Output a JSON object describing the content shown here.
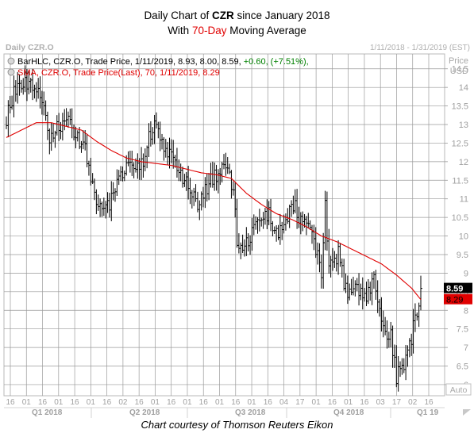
{
  "header": {
    "title_prefix": "Daily Chart of ",
    "ticker": "CZR",
    "title_suffix": " since January 2018",
    "subtitle_prefix": "With ",
    "ma_label": "70-Day",
    "subtitle_suffix": " Moving Average"
  },
  "panel": {
    "name": "Daily CZR.O",
    "date_range": "1/11/2018 - 1/31/2019 (EST)",
    "legend_bar": "BarHLC, CZR.O, Trade Price, 1/11/2019, 8.93, 8.00, 8.59, ",
    "legend_bar_change": "+0.60, (+7.51%),",
    "legend_sma": "SMA, CZR.O, Trade Price(Last), 70, 1/11/2019, 8.29",
    "axis_title_1": "Price",
    "axis_title_2": "USD",
    "last_price_label": "8.59",
    "sma_label": "8.29",
    "auto_label": "Auto"
  },
  "caption": "Chart courtesy of Thomson Reuters Eikon",
  "colors": {
    "bar": "#000000",
    "sma": "#e00000",
    "grid": "#9a9a9a",
    "last_bg": "#000000",
    "sma_bg": "#e00000"
  },
  "chart_data": {
    "type": "bar",
    "ylim": [
      5.7,
      14.9
    ],
    "yticks": [
      6,
      6.5,
      7,
      7.5,
      8,
      8.5,
      9,
      9.5,
      10,
      10.5,
      11,
      11.5,
      12,
      12.5,
      13,
      13.5,
      14,
      14.5
    ],
    "ytick_labels": [
      "6",
      "6.5",
      "7",
      "7.5",
      "8",
      "8.5",
      "9",
      "9.5",
      "10",
      "10.5",
      "11",
      "11.5",
      "12",
      "12.5",
      "13",
      "13.5",
      "14",
      "14.5"
    ],
    "x_day_labels": [
      "16",
      "01",
      "16",
      "01",
      "16",
      "01",
      "16",
      "02",
      "16",
      "01",
      "16",
      "01",
      "16",
      "01",
      "16",
      "01",
      "16",
      "04",
      "17",
      "01",
      "16",
      "01",
      "16",
      "03",
      "17",
      "02",
      "16"
    ],
    "quarters": [
      "Q1 2018",
      "Q2 2018",
      "Q3 2018",
      "Q4 2018",
      "Q1 19"
    ],
    "close_path": [
      [
        0,
        13.1
      ],
      [
        4,
        13.9
      ],
      [
        9,
        14.15
      ],
      [
        14,
        14.1
      ],
      [
        19,
        13.55
      ],
      [
        23,
        12.55
      ],
      [
        28,
        12.95
      ],
      [
        33,
        13.05
      ],
      [
        37,
        12.7
      ],
      [
        42,
        12.35
      ],
      [
        47,
        11.0
      ],
      [
        51,
        10.7
      ],
      [
        55,
        10.85
      ],
      [
        60,
        11.55
      ],
      [
        65,
        12.05
      ],
      [
        70,
        11.8
      ],
      [
        74,
        12.2
      ],
      [
        79,
        13.2
      ],
      [
        83,
        12.55
      ],
      [
        88,
        12.15
      ],
      [
        93,
        11.7
      ],
      [
        98,
        11.2
      ],
      [
        102,
        10.75
      ],
      [
        107,
        11.35
      ],
      [
        112,
        11.6
      ],
      [
        116,
        11.85
      ],
      [
        121,
        11.3
      ],
      [
        123,
        9.9
      ],
      [
        126,
        9.6
      ],
      [
        130,
        10.0
      ],
      [
        135,
        10.45
      ],
      [
        140,
        10.55
      ],
      [
        144,
        10.0
      ],
      [
        149,
        10.55
      ],
      [
        154,
        10.75
      ],
      [
        158,
        10.3
      ],
      [
        163,
        10.05
      ],
      [
        168,
        9.05
      ],
      [
        170,
        10.8
      ],
      [
        172,
        9.15
      ],
      [
        177,
        9.5
      ],
      [
        182,
        8.3
      ],
      [
        186,
        8.75
      ],
      [
        191,
        8.35
      ],
      [
        196,
        8.75
      ],
      [
        200,
        7.65
      ],
      [
        205,
        7.3
      ],
      [
        208,
        6.2
      ],
      [
        212,
        6.45
      ],
      [
        215,
        7.05
      ],
      [
        219,
        8.0
      ],
      [
        221,
        8.59
      ]
    ],
    "sma_path": [
      [
        0,
        12.65
      ],
      [
        8,
        12.85
      ],
      [
        16,
        13.05
      ],
      [
        24,
        13.05
      ],
      [
        32,
        12.95
      ],
      [
        40,
        12.85
      ],
      [
        48,
        12.55
      ],
      [
        56,
        12.3
      ],
      [
        64,
        12.1
      ],
      [
        72,
        12.0
      ],
      [
        80,
        11.95
      ],
      [
        88,
        11.9
      ],
      [
        96,
        11.8
      ],
      [
        104,
        11.7
      ],
      [
        112,
        11.65
      ],
      [
        120,
        11.55
      ],
      [
        128,
        11.15
      ],
      [
        136,
        10.85
      ],
      [
        144,
        10.6
      ],
      [
        152,
        10.45
      ],
      [
        160,
        10.25
      ],
      [
        168,
        10.0
      ],
      [
        176,
        9.85
      ],
      [
        184,
        9.65
      ],
      [
        192,
        9.45
      ],
      [
        200,
        9.25
      ],
      [
        208,
        8.95
      ],
      [
        216,
        8.6
      ],
      [
        221,
        8.29
      ]
    ],
    "last_bar": {
      "date": "1/11/2019",
      "high": 8.93,
      "low": 8.0,
      "close": 8.59,
      "change": 0.6,
      "change_pct": 7.51
    },
    "sma_last": 8.29,
    "sma_period": 70,
    "grid": true
  }
}
